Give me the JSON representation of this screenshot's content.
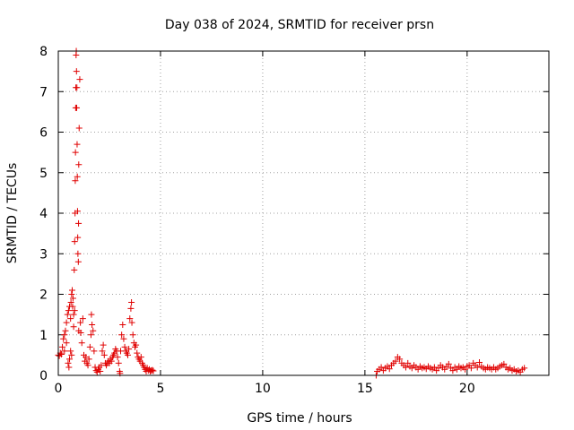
{
  "chart_data": {
    "type": "scatter",
    "title": "Day 038 of 2024, SRMTID for receiver prsn",
    "xlabel": "GPS time / hours",
    "ylabel": "SRMTID / TECUs",
    "xlim": [
      0,
      24
    ],
    "ylim": [
      0,
      8
    ],
    "xticks": [
      0,
      5,
      10,
      15,
      20
    ],
    "xtick_labels": [
      "0",
      "5",
      "10",
      "15",
      "20"
    ],
    "yticks": [
      0,
      1,
      2,
      3,
      4,
      5,
      6,
      7,
      8
    ],
    "ytick_labels": [
      "0",
      "1",
      "2",
      "3",
      "4",
      "5",
      "6",
      "7",
      "8"
    ],
    "grid": true,
    "marker": "+",
    "color": "#e00000",
    "series": [
      {
        "name": "SRMTID",
        "points": [
          [
            0.0,
            0.5
          ],
          [
            0.05,
            0.48
          ],
          [
            0.1,
            0.55
          ],
          [
            0.15,
            0.52
          ],
          [
            0.2,
            0.7
          ],
          [
            0.25,
            0.9
          ],
          [
            0.3,
            1.0
          ],
          [
            0.3,
            0.6
          ],
          [
            0.35,
            1.1
          ],
          [
            0.4,
            0.8
          ],
          [
            0.4,
            1.3
          ],
          [
            0.45,
            1.5
          ],
          [
            0.48,
            0.3
          ],
          [
            0.5,
            1.6
          ],
          [
            0.52,
            0.2
          ],
          [
            0.55,
            1.7
          ],
          [
            0.55,
            0.4
          ],
          [
            0.6,
            1.4
          ],
          [
            0.6,
            0.6
          ],
          [
            0.62,
            1.8
          ],
          [
            0.65,
            2.0
          ],
          [
            0.65,
            0.5
          ],
          [
            0.68,
            2.1
          ],
          [
            0.7,
            1.7
          ],
          [
            0.72,
            1.9
          ],
          [
            0.75,
            1.5
          ],
          [
            0.75,
            1.2
          ],
          [
            0.78,
            2.6
          ],
          [
            0.8,
            3.3
          ],
          [
            0.8,
            1.6
          ],
          [
            0.82,
            4.0
          ],
          [
            0.83,
            4.8
          ],
          [
            0.84,
            5.5
          ],
          [
            0.85,
            6.6
          ],
          [
            0.86,
            7.1
          ],
          [
            0.87,
            7.9
          ],
          [
            0.88,
            8.0
          ],
          [
            0.89,
            7.5
          ],
          [
            0.9,
            6.6
          ],
          [
            0.91,
            7.1
          ],
          [
            0.92,
            5.7
          ],
          [
            0.93,
            4.9
          ],
          [
            0.94,
            4.05
          ],
          [
            0.95,
            3.4
          ],
          [
            0.96,
            3.0
          ],
          [
            0.98,
            2.8
          ],
          [
            0.99,
            3.75
          ],
          [
            1.0,
            5.2
          ],
          [
            1.0,
            1.1
          ],
          [
            1.02,
            6.1
          ],
          [
            1.05,
            7.3
          ],
          [
            1.08,
            1.3
          ],
          [
            1.1,
            1.05
          ],
          [
            1.15,
            0.8
          ],
          [
            1.2,
            1.4
          ],
          [
            1.25,
            0.5
          ],
          [
            1.3,
            0.35
          ],
          [
            1.35,
            0.45
          ],
          [
            1.4,
            0.3
          ],
          [
            1.45,
            0.25
          ],
          [
            1.5,
            0.4
          ],
          [
            1.55,
            0.7
          ],
          [
            1.6,
            1.0
          ],
          [
            1.62,
            1.5
          ],
          [
            1.65,
            1.25
          ],
          [
            1.7,
            1.1
          ],
          [
            1.75,
            0.6
          ],
          [
            1.8,
            0.2
          ],
          [
            1.85,
            0.12
          ],
          [
            1.9,
            0.08
          ],
          [
            1.95,
            0.15
          ],
          [
            2.0,
            0.2
          ],
          [
            2.05,
            0.1
          ],
          [
            2.1,
            0.25
          ],
          [
            2.15,
            0.6
          ],
          [
            2.2,
            0.75
          ],
          [
            2.25,
            0.5
          ],
          [
            2.3,
            0.3
          ],
          [
            2.35,
            0.25
          ],
          [
            2.4,
            0.3
          ],
          [
            2.45,
            0.35
          ],
          [
            2.5,
            0.3
          ],
          [
            2.55,
            0.4
          ],
          [
            2.6,
            0.35
          ],
          [
            2.65,
            0.45
          ],
          [
            2.7,
            0.5
          ],
          [
            2.75,
            0.55
          ],
          [
            2.8,
            0.65
          ],
          [
            2.85,
            0.6
          ],
          [
            2.9,
            0.45
          ],
          [
            2.95,
            0.3
          ],
          [
            3.0,
            0.1
          ],
          [
            3.02,
            0.05
          ],
          [
            3.05,
            0.6
          ],
          [
            3.1,
            1.0
          ],
          [
            3.15,
            1.25
          ],
          [
            3.2,
            0.9
          ],
          [
            3.25,
            0.7
          ],
          [
            3.3,
            0.6
          ],
          [
            3.35,
            0.55
          ],
          [
            3.4,
            0.5
          ],
          [
            3.45,
            0.65
          ],
          [
            3.5,
            1.4
          ],
          [
            3.55,
            1.65
          ],
          [
            3.58,
            1.8
          ],
          [
            3.6,
            1.3
          ],
          [
            3.65,
            1.0
          ],
          [
            3.7,
            0.8
          ],
          [
            3.75,
            0.7
          ],
          [
            3.8,
            0.75
          ],
          [
            3.85,
            0.55
          ],
          [
            3.9,
            0.45
          ],
          [
            3.95,
            0.4
          ],
          [
            4.0,
            0.35
          ],
          [
            4.05,
            0.45
          ],
          [
            4.1,
            0.3
          ],
          [
            4.15,
            0.25
          ],
          [
            4.2,
            0.2
          ],
          [
            4.25,
            0.15
          ],
          [
            4.3,
            0.1
          ],
          [
            4.35,
            0.18
          ],
          [
            4.4,
            0.12
          ],
          [
            4.45,
            0.15
          ],
          [
            4.5,
            0.1
          ],
          [
            4.55,
            0.12
          ],
          [
            4.6,
            0.13
          ],
          [
            4.65,
            0.11
          ],
          [
            15.55,
            0.0
          ],
          [
            15.6,
            0.1
          ],
          [
            15.7,
            0.15
          ],
          [
            15.8,
            0.2
          ],
          [
            15.9,
            0.12
          ],
          [
            16.0,
            0.18
          ],
          [
            16.1,
            0.22
          ],
          [
            16.2,
            0.16
          ],
          [
            16.3,
            0.25
          ],
          [
            16.4,
            0.3
          ],
          [
            16.5,
            0.35
          ],
          [
            16.6,
            0.45
          ],
          [
            16.7,
            0.4
          ],
          [
            16.8,
            0.3
          ],
          [
            16.9,
            0.25
          ],
          [
            17.0,
            0.2
          ],
          [
            17.1,
            0.3
          ],
          [
            17.2,
            0.22
          ],
          [
            17.3,
            0.18
          ],
          [
            17.4,
            0.25
          ],
          [
            17.5,
            0.2
          ],
          [
            17.6,
            0.15
          ],
          [
            17.7,
            0.22
          ],
          [
            17.8,
            0.18
          ],
          [
            17.9,
            0.2
          ],
          [
            18.0,
            0.16
          ],
          [
            18.1,
            0.22
          ],
          [
            18.2,
            0.18
          ],
          [
            18.3,
            0.15
          ],
          [
            18.4,
            0.2
          ],
          [
            18.5,
            0.12
          ],
          [
            18.6,
            0.18
          ],
          [
            18.7,
            0.25
          ],
          [
            18.8,
            0.2
          ],
          [
            18.9,
            0.15
          ],
          [
            19.0,
            0.22
          ],
          [
            19.1,
            0.28
          ],
          [
            19.2,
            0.18
          ],
          [
            19.3,
            0.12
          ],
          [
            19.4,
            0.2
          ],
          [
            19.5,
            0.15
          ],
          [
            19.6,
            0.22
          ],
          [
            19.7,
            0.18
          ],
          [
            19.8,
            0.2
          ],
          [
            19.9,
            0.15
          ],
          [
            20.0,
            0.22
          ],
          [
            20.1,
            0.25
          ],
          [
            20.2,
            0.18
          ],
          [
            20.3,
            0.3
          ],
          [
            20.4,
            0.25
          ],
          [
            20.5,
            0.2
          ],
          [
            20.6,
            0.32
          ],
          [
            20.7,
            0.22
          ],
          [
            20.8,
            0.18
          ],
          [
            20.9,
            0.15
          ],
          [
            21.0,
            0.2
          ],
          [
            21.1,
            0.18
          ],
          [
            21.2,
            0.15
          ],
          [
            21.3,
            0.2
          ],
          [
            21.4,
            0.15
          ],
          [
            21.5,
            0.18
          ],
          [
            21.6,
            0.22
          ],
          [
            21.7,
            0.25
          ],
          [
            21.8,
            0.28
          ],
          [
            21.9,
            0.2
          ],
          [
            22.0,
            0.15
          ],
          [
            22.1,
            0.18
          ],
          [
            22.2,
            0.12
          ],
          [
            22.3,
            0.15
          ],
          [
            22.4,
            0.1
          ],
          [
            22.5,
            0.12
          ],
          [
            22.6,
            0.08
          ],
          [
            22.7,
            0.15
          ],
          [
            22.8,
            0.18
          ]
        ]
      }
    ]
  }
}
